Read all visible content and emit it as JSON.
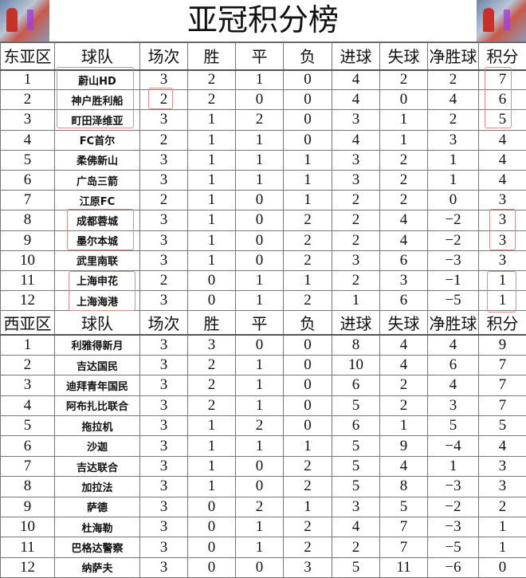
{
  "title": "亚冠积分榜",
  "highlight_color": "#e08a8a",
  "columns": [
    "球队",
    "场次",
    "胜",
    "平",
    "负",
    "进球",
    "失球",
    "净胜球",
    "积分"
  ],
  "east": {
    "label": "东亚区",
    "rows": [
      [
        "1",
        "蔚山HD",
        "3",
        "2",
        "1",
        "0",
        "4",
        "2",
        "2",
        "7"
      ],
      [
        "2",
        "神户胜利船",
        "2",
        "2",
        "0",
        "0",
        "4",
        "0",
        "4",
        "6"
      ],
      [
        "3",
        "町田泽维亚",
        "3",
        "1",
        "2",
        "0",
        "3",
        "1",
        "2",
        "5"
      ],
      [
        "4",
        "FC首尔",
        "2",
        "1",
        "1",
        "0",
        "4",
        "1",
        "3",
        "4"
      ],
      [
        "5",
        "柔佛新山",
        "3",
        "1",
        "1",
        "1",
        "3",
        "2",
        "1",
        "4"
      ],
      [
        "6",
        "广岛三箭",
        "3",
        "1",
        "1",
        "1",
        "3",
        "2",
        "1",
        "4"
      ],
      [
        "7",
        "江原FC",
        "2",
        "1",
        "0",
        "1",
        "2",
        "2",
        "0",
        "3"
      ],
      [
        "8",
        "成都蓉城",
        "3",
        "1",
        "0",
        "2",
        "2",
        "4",
        "−2",
        "3"
      ],
      [
        "9",
        "墨尔本城",
        "3",
        "1",
        "0",
        "2",
        "2",
        "4",
        "−2",
        "3"
      ],
      [
        "10",
        "武里南联",
        "3",
        "1",
        "0",
        "2",
        "3",
        "6",
        "−3",
        "3"
      ],
      [
        "11",
        "上海申花",
        "2",
        "0",
        "1",
        "1",
        "2",
        "3",
        "−1",
        "1"
      ],
      [
        "12",
        "上海海港",
        "3",
        "0",
        "1",
        "2",
        "1",
        "6",
        "−5",
        "1"
      ]
    ]
  },
  "west": {
    "label": "西亚区",
    "rows": [
      [
        "1",
        "利雅得新月",
        "3",
        "3",
        "0",
        "0",
        "8",
        "4",
        "4",
        "9"
      ],
      [
        "2",
        "吉达国民",
        "3",
        "2",
        "1",
        "0",
        "10",
        "4",
        "6",
        "7"
      ],
      [
        "3",
        "迪拜青年国民",
        "3",
        "2",
        "1",
        "0",
        "6",
        "2",
        "4",
        "7"
      ],
      [
        "4",
        "阿布扎比联合",
        "3",
        "2",
        "1",
        "0",
        "5",
        "2",
        "3",
        "7"
      ],
      [
        "5",
        "拖拉机",
        "3",
        "1",
        "2",
        "0",
        "6",
        "1",
        "5",
        "5"
      ],
      [
        "6",
        "沙迦",
        "3",
        "1",
        "1",
        "1",
        "5",
        "9",
        "−4",
        "4"
      ],
      [
        "7",
        "吉达联合",
        "3",
        "1",
        "0",
        "2",
        "5",
        "4",
        "1",
        "3"
      ],
      [
        "8",
        "加拉法",
        "3",
        "1",
        "0",
        "2",
        "5",
        "8",
        "−3",
        "3"
      ],
      [
        "9",
        "萨德",
        "3",
        "0",
        "2",
        "1",
        "3",
        "5",
        "−2",
        "2"
      ],
      [
        "10",
        "杜海勒",
        "3",
        "0",
        "1",
        "2",
        "4",
        "7",
        "−3",
        "1"
      ],
      [
        "11",
        "巴格达警察",
        "3",
        "0",
        "1",
        "2",
        "2",
        "7",
        "−5",
        "1"
      ],
      [
        "12",
        "纳萨夫",
        "3",
        "0",
        "0",
        "3",
        "5",
        "11",
        "−6",
        "0"
      ]
    ]
  }
}
